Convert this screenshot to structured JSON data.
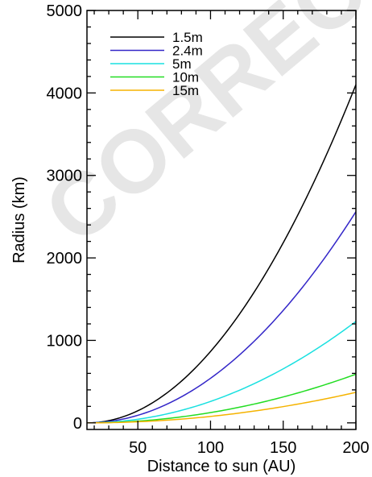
{
  "chart_data": {
    "type": "line",
    "title": "",
    "xlabel": "Distance to sun (AU)",
    "ylabel": "Radius (km)",
    "xlim": [
      15,
      200
    ],
    "ylim": [
      -80,
      5000
    ],
    "xticks": [
      50,
      100,
      150,
      200
    ],
    "yticks": [
      0,
      1000,
      2000,
      3000,
      4000,
      5000
    ],
    "x_minor_step": 10,
    "y_minor_step": 200,
    "grid": false,
    "legend_position": "top-left",
    "watermark": "CORRECTED",
    "series": [
      {
        "name": "1.5m",
        "color": "#000000",
        "exponent": 2,
        "x_at_zero": 15,
        "x_end": 200,
        "y_end": 4100
      },
      {
        "name": "2.4m",
        "color": "#3326c8",
        "exponent": 2,
        "x_at_zero": 15,
        "x_end": 200,
        "y_end": 2560
      },
      {
        "name": "5m",
        "color": "#19e0e0",
        "exponent": 2,
        "x_at_zero": 15,
        "x_end": 200,
        "y_end": 1230
      },
      {
        "name": "10m",
        "color": "#22dd22",
        "exponent": 2,
        "x_at_zero": 15,
        "x_end": 200,
        "y_end": 590
      },
      {
        "name": "15m",
        "color": "#f5b300",
        "exponent": 2,
        "x_at_zero": 15,
        "x_end": 200,
        "y_end": 370
      }
    ]
  }
}
